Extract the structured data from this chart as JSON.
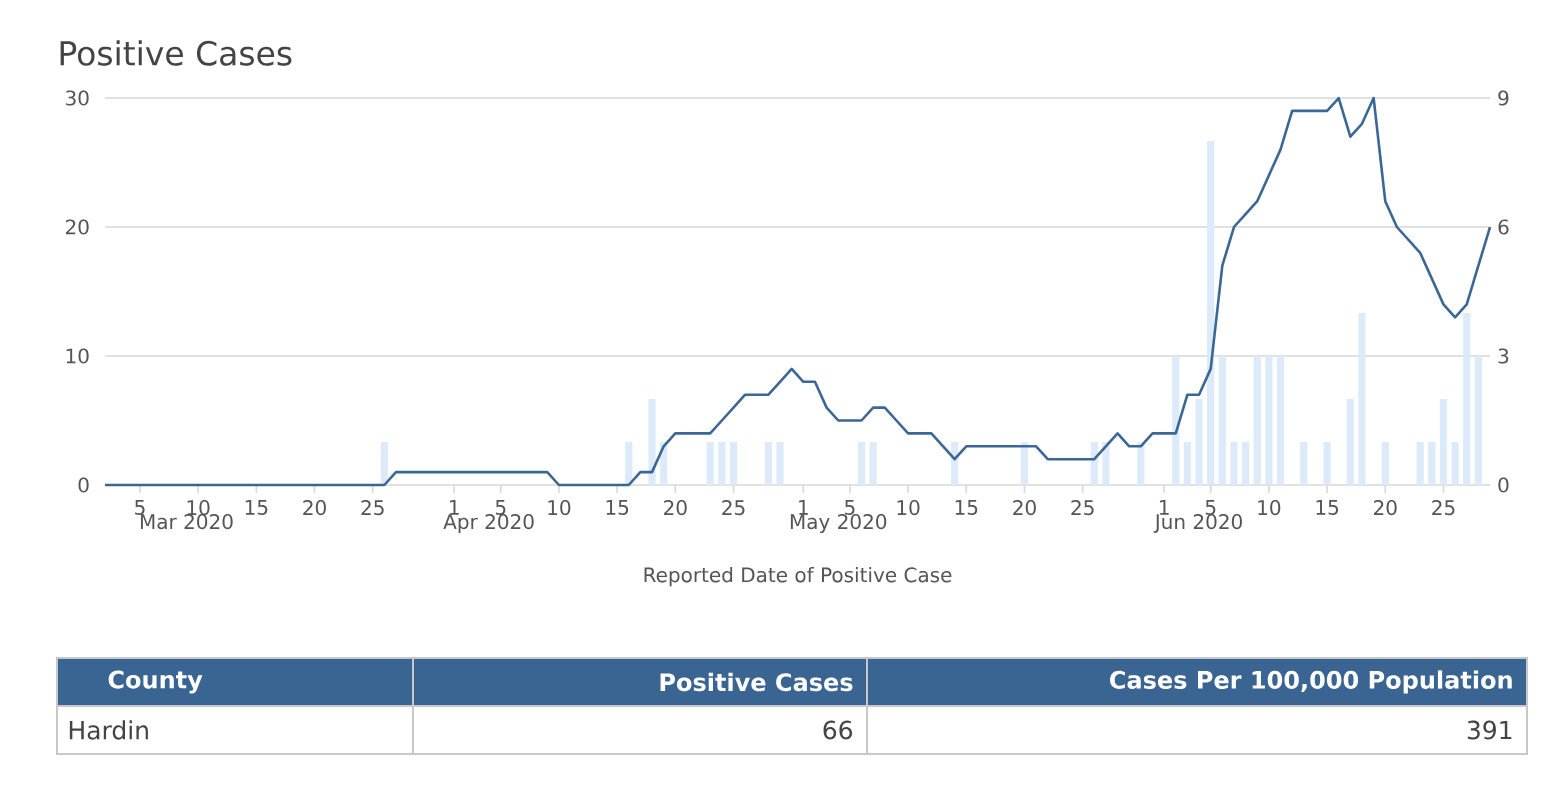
{
  "chart_data": {
    "type": "bar",
    "title": "Positive Cases",
    "xlabel": "Reported Date of Positive Case",
    "x": [
      "2020-03-02",
      "2020-03-03",
      "2020-03-04",
      "2020-03-05",
      "2020-03-06",
      "2020-03-07",
      "2020-03-08",
      "2020-03-09",
      "2020-03-10",
      "2020-03-11",
      "2020-03-12",
      "2020-03-13",
      "2020-03-14",
      "2020-03-15",
      "2020-03-16",
      "2020-03-17",
      "2020-03-18",
      "2020-03-19",
      "2020-03-20",
      "2020-03-21",
      "2020-03-22",
      "2020-03-23",
      "2020-03-24",
      "2020-03-25",
      "2020-03-26",
      "2020-03-27",
      "2020-03-28",
      "2020-03-29",
      "2020-03-30",
      "2020-03-31",
      "2020-04-01",
      "2020-04-02",
      "2020-04-03",
      "2020-04-04",
      "2020-04-05",
      "2020-04-06",
      "2020-04-07",
      "2020-04-08",
      "2020-04-09",
      "2020-04-10",
      "2020-04-11",
      "2020-04-12",
      "2020-04-13",
      "2020-04-14",
      "2020-04-15",
      "2020-04-16",
      "2020-04-17",
      "2020-04-18",
      "2020-04-19",
      "2020-04-20",
      "2020-04-21",
      "2020-04-22",
      "2020-04-23",
      "2020-04-24",
      "2020-04-25",
      "2020-04-26",
      "2020-04-27",
      "2020-04-28",
      "2020-04-29",
      "2020-04-30",
      "2020-05-01",
      "2020-05-02",
      "2020-05-03",
      "2020-05-04",
      "2020-05-05",
      "2020-05-06",
      "2020-05-07",
      "2020-05-08",
      "2020-05-09",
      "2020-05-10",
      "2020-05-11",
      "2020-05-12",
      "2020-05-13",
      "2020-05-14",
      "2020-05-15",
      "2020-05-16",
      "2020-05-17",
      "2020-05-18",
      "2020-05-19",
      "2020-05-20",
      "2020-05-21",
      "2020-05-22",
      "2020-05-23",
      "2020-05-24",
      "2020-05-25",
      "2020-05-26",
      "2020-05-27",
      "2020-05-28",
      "2020-05-29",
      "2020-05-30",
      "2020-05-31",
      "2020-06-01",
      "2020-06-02",
      "2020-06-03",
      "2020-06-04",
      "2020-06-05",
      "2020-06-06",
      "2020-06-07",
      "2020-06-08",
      "2020-06-09",
      "2020-06-10",
      "2020-06-11",
      "2020-06-12",
      "2020-06-13",
      "2020-06-14",
      "2020-06-15",
      "2020-06-16",
      "2020-06-17",
      "2020-06-18",
      "2020-06-19",
      "2020-06-20",
      "2020-06-21",
      "2020-06-22",
      "2020-06-23",
      "2020-06-24",
      "2020-06-25",
      "2020-06-26",
      "2020-06-27",
      "2020-06-28",
      "2020-06-29"
    ],
    "series": [
      {
        "axis": "y2",
        "color": "#dceafa",
        "values": [
          null,
          null,
          null,
          null,
          null,
          null,
          null,
          null,
          null,
          null,
          null,
          null,
          null,
          null,
          null,
          null,
          null,
          null,
          null,
          null,
          null,
          null,
          null,
          null,
          1,
          null,
          null,
          null,
          null,
          null,
          null,
          null,
          null,
          null,
          null,
          null,
          null,
          null,
          null,
          null,
          null,
          null,
          null,
          null,
          null,
          1,
          null,
          2,
          1,
          null,
          null,
          null,
          1,
          1,
          1,
          null,
          null,
          1,
          1,
          null,
          null,
          null,
          null,
          null,
          null,
          1,
          1,
          null,
          null,
          null,
          null,
          null,
          null,
          1,
          null,
          null,
          null,
          null,
          null,
          1,
          null,
          null,
          null,
          null,
          null,
          1,
          1,
          null,
          null,
          1,
          null,
          null,
          3,
          1,
          2,
          8,
          3,
          1,
          1,
          3,
          3,
          3,
          null,
          1,
          null,
          1,
          null,
          2,
          4,
          null,
          1,
          null,
          null,
          1,
          1,
          2,
          1,
          4,
          3,
          null
        ]
      },
      {
        "type": "line",
        "color": "#3b6795",
        "values": [
          0,
          0,
          0,
          0,
          0,
          0,
          0,
          0,
          0,
          0,
          0,
          0,
          0,
          0,
          0,
          0,
          0,
          0,
          0,
          0,
          0,
          0,
          0,
          0,
          0,
          1,
          1,
          1,
          1,
          1,
          1,
          1,
          1,
          1,
          1,
          1,
          1,
          1,
          1,
          0,
          0,
          0,
          0,
          0,
          0,
          0,
          1,
          1,
          3,
          4,
          4,
          4,
          4,
          5,
          6,
          7,
          7,
          7,
          8,
          9,
          8,
          8,
          6,
          5,
          5,
          5,
          6,
          6,
          5,
          4,
          4,
          4,
          3,
          2,
          3,
          3,
          3,
          3,
          3,
          3,
          3,
          2,
          2,
          2,
          2,
          2,
          3,
          4,
          3,
          3,
          4,
          4,
          4,
          7,
          7,
          9,
          17,
          20,
          21,
          22,
          24,
          26,
          29,
          29,
          29,
          29,
          30,
          27,
          28,
          30,
          22,
          20,
          19,
          18,
          16,
          14,
          13,
          14,
          17,
          20
        ]
      }
    ],
    "xlim": [
      "2020-03-02",
      "2020-06-29"
    ],
    "xticks": [
      {
        "value": "2020-03-05",
        "label": "5"
      },
      {
        "value": "2020-03-10",
        "label": "10"
      },
      {
        "value": "2020-03-15",
        "label": "15"
      },
      {
        "value": "2020-03-20",
        "label": "20"
      },
      {
        "value": "2020-03-25",
        "label": "25"
      },
      {
        "value": "2020-04-01",
        "label": "1"
      },
      {
        "value": "2020-04-05",
        "label": "5"
      },
      {
        "value": "2020-04-10",
        "label": "10"
      },
      {
        "value": "2020-04-15",
        "label": "15"
      },
      {
        "value": "2020-04-20",
        "label": "20"
      },
      {
        "value": "2020-04-25",
        "label": "25"
      },
      {
        "value": "2020-05-01",
        "label": "1"
      },
      {
        "value": "2020-05-05",
        "label": "5"
      },
      {
        "value": "2020-05-10",
        "label": "10"
      },
      {
        "value": "2020-05-15",
        "label": "15"
      },
      {
        "value": "2020-05-20",
        "label": "20"
      },
      {
        "value": "2020-05-25",
        "label": "25"
      },
      {
        "value": "2020-06-01",
        "label": "1"
      },
      {
        "value": "2020-06-05",
        "label": "5"
      },
      {
        "value": "2020-06-10",
        "label": "10"
      },
      {
        "value": "2020-06-15",
        "label": "15"
      },
      {
        "value": "2020-06-20",
        "label": "20"
      },
      {
        "value": "2020-06-25",
        "label": "25"
      }
    ],
    "x2lim": [
      "2020-03-02",
      "2020-06-29"
    ],
    "x2ticks": [
      {
        "value": "2020-03-09",
        "label": "Mar 2020"
      },
      {
        "value": "2020-04-04",
        "label": "Apr 2020"
      },
      {
        "value": "2020-05-04",
        "label": "May 2020"
      },
      {
        "value": "2020-06-04",
        "label": "Jun 2020"
      }
    ],
    "ylim": [
      0,
      30
    ],
    "yticks": [
      0,
      10,
      20,
      30
    ],
    "y2lim": [
      0,
      9
    ],
    "y2ticks": [
      0,
      3,
      6,
      9
    ],
    "grid": "y",
    "annotations": [
      "County",
      "Positive Cases",
      "Cases Per 100,000 Population",
      "Hardin",
      "66",
      "391"
    ]
  }
}
